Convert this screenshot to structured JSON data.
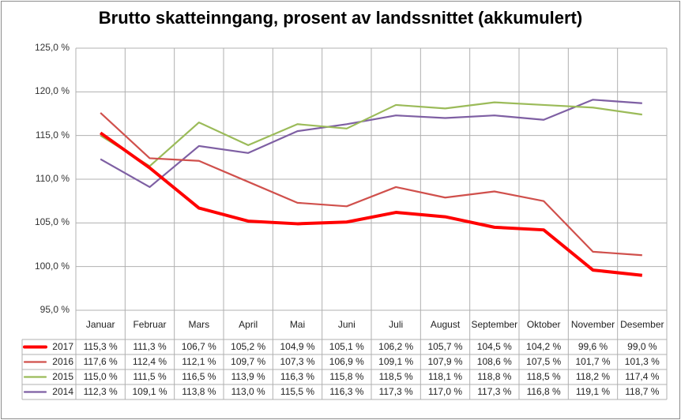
{
  "chart_data": {
    "type": "line",
    "title": "Brutto skatteinngang, prosent av landssnittet (akkumulert)",
    "xlabel": "",
    "ylabel": "",
    "ylim": [
      95,
      125
    ],
    "yticks": [
      "95,0 %",
      "100,0 %",
      "105,0 %",
      "110,0 %",
      "115,0 %",
      "120,0 %",
      "125,0 %"
    ],
    "ytick_values": [
      95,
      100,
      105,
      110,
      115,
      120,
      125
    ],
    "grid": true,
    "legend": "data-table-bottom",
    "categories": [
      "Januar",
      "Februar",
      "Mars",
      "April",
      "Mai",
      "Juni",
      "Juli",
      "August",
      "September",
      "Oktober",
      "November",
      "Desember"
    ],
    "series": [
      {
        "name": "2017",
        "color": "#ff0000",
        "width": 4,
        "values": [
          115.3,
          111.3,
          106.7,
          105.2,
          104.9,
          105.1,
          106.2,
          105.7,
          104.5,
          104.2,
          99.6,
          99.0
        ],
        "labels": [
          "115,3 %",
          "111,3 %",
          "106,7 %",
          "105,2 %",
          "104,9 %",
          "105,1 %",
          "106,2 %",
          "105,7 %",
          "104,5 %",
          "104,2 %",
          "99,6 %",
          "99,0 %"
        ]
      },
      {
        "name": "2016",
        "color": "#d0504c",
        "width": 2.2,
        "values": [
          117.6,
          112.4,
          112.1,
          109.7,
          107.3,
          106.9,
          109.1,
          107.9,
          108.6,
          107.5,
          101.7,
          101.3
        ],
        "labels": [
          "117,6 %",
          "112,4 %",
          "112,1 %",
          "109,7 %",
          "107,3 %",
          "106,9 %",
          "109,1 %",
          "107,9 %",
          "108,6 %",
          "107,5 %",
          "101,7 %",
          "101,3 %"
        ]
      },
      {
        "name": "2015",
        "color": "#9bbb59",
        "width": 2.2,
        "values": [
          115.0,
          111.5,
          116.5,
          113.9,
          116.3,
          115.8,
          118.5,
          118.1,
          118.8,
          118.5,
          118.2,
          117.4
        ],
        "labels": [
          "115,0 %",
          "111,5 %",
          "116,5 %",
          "113,9 %",
          "116,3 %",
          "115,8 %",
          "118,5 %",
          "118,1 %",
          "118,8 %",
          "118,5 %",
          "118,2 %",
          "117,4 %"
        ]
      },
      {
        "name": "2014",
        "color": "#7e5fa3",
        "width": 2.2,
        "values": [
          112.3,
          109.1,
          113.8,
          113.0,
          115.5,
          116.3,
          117.3,
          117.0,
          117.3,
          116.8,
          119.1,
          118.7
        ],
        "labels": [
          "112,3 %",
          "109,1 %",
          "113,8 %",
          "113,0 %",
          "115,5 %",
          "116,3 %",
          "117,3 %",
          "117,0 %",
          "117,3 %",
          "116,8 %",
          "119,1 %",
          "118,7 %"
        ]
      }
    ]
  }
}
